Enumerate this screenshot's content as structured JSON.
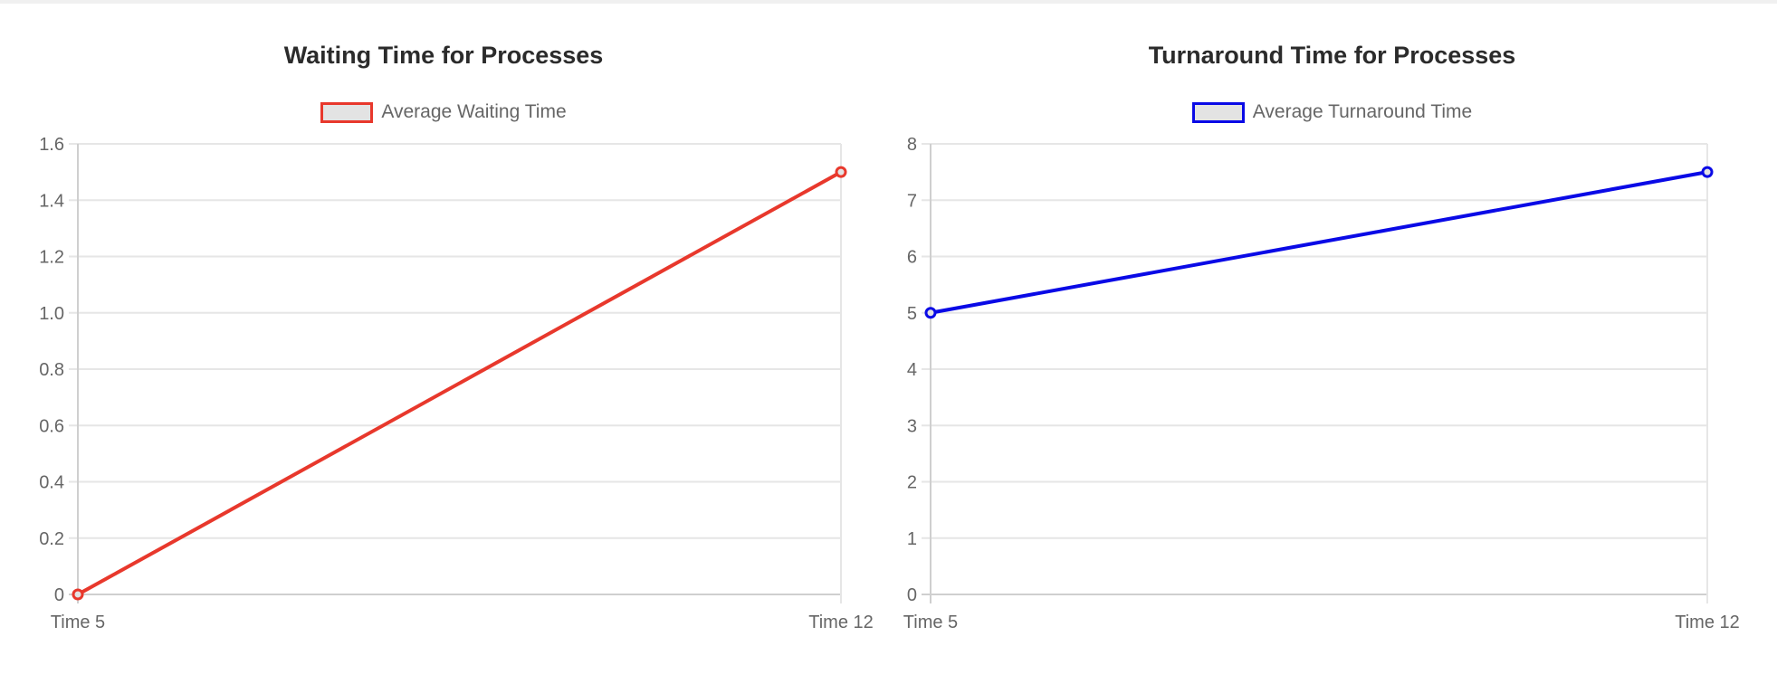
{
  "chart_data": [
    {
      "type": "line",
      "title": "Waiting Time for Processes",
      "categories": [
        "Time 5",
        "Time 12"
      ],
      "series": [
        {
          "name": "Average Waiting Time",
          "values": [
            0,
            1.5
          ],
          "color": "#e8382c"
        }
      ],
      "ylim": [
        0,
        1.6
      ],
      "yticks": [
        "1.6",
        "1.4",
        "1.2",
        "1.0",
        "0.8",
        "0.6",
        "0.4",
        "0.2",
        "0"
      ],
      "grid": true,
      "legend": "top-center"
    },
    {
      "type": "line",
      "title": "Turnaround Time for Processes",
      "categories": [
        "Time 5",
        "Time 12"
      ],
      "series": [
        {
          "name": "Average Turnaround Time",
          "values": [
            5,
            7.5
          ],
          "color": "#0a0ae6"
        }
      ],
      "ylim": [
        0,
        8
      ],
      "yticks": [
        "8",
        "7",
        "6",
        "5",
        "4",
        "3",
        "2",
        "1",
        "0"
      ],
      "grid": true,
      "legend": "top-center"
    }
  ]
}
